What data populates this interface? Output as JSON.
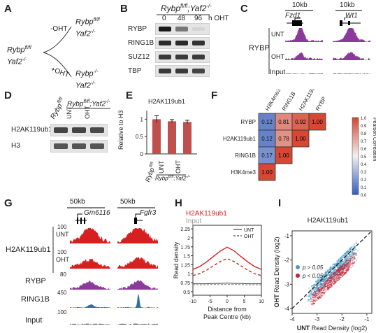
{
  "panels": [
    "A",
    "B",
    "C",
    "D",
    "E",
    "F",
    "G",
    "H",
    "I"
  ],
  "A": {
    "start_line1": "Rybp",
    "start_sup1": "fl/fl",
    "start_line2": "Yaf2",
    "start_sup2": "-/-",
    "minus_ohT": "-OHT",
    "plus_ohT": "+OHT",
    "top_line1": "Rybp",
    "top_sup1": "fl/fl",
    "top_line2": "Yaf2",
    "top_sup2": "-/-",
    "bot_line1": "Rybp",
    "bot_sup1": "-/-",
    "bot_line2": "Yaf2",
    "bot_sup2": "-/-"
  },
  "B": {
    "genotype": "Rybp",
    "genotype_sup1": "fl/fl",
    "genotype_mid": ";Yaf2",
    "genotype_sup2": "-/-",
    "timepoints": [
      "0",
      "48",
      "96"
    ],
    "time_unit": "h OHT",
    "rows": [
      "RYBP",
      "RING1B",
      "SUZ12",
      "TBP"
    ]
  },
  "C": {
    "scale1": "10kb",
    "scale2": "10kb",
    "gene1": "Fzd1",
    "gene2": "Wt1",
    "group": "RYBP",
    "track_untreated": "UNT",
    "track_treated": "OHT",
    "track_input": "Input"
  },
  "D": {
    "col1": "Rybp",
    "col1_sup": "fl/fl",
    "group_label": "Rybp",
    "group_sup1": "fl/fl",
    "group_mid": ";Yaf2",
    "group_sup2": "-/-",
    "col2": "UNT",
    "col3": "OHT",
    "rows": [
      "H2AK119ub1",
      "H3"
    ]
  },
  "E": {
    "title": "H2AK119ub1",
    "ylabel": "Relative to H3",
    "yticks": [
      "0",
      "0.5",
      "1"
    ],
    "bars": [
      {
        "label": "Rybp",
        "sup": "fl/fl"
      },
      {
        "label": "UNT"
      },
      {
        "label": "OHT"
      }
    ],
    "group_label": "Rybp",
    "group_sup1": "fl/fl",
    "group_mid": ";Yaf2",
    "group_sup2": "-/-"
  },
  "F": {
    "labels": [
      "RYBP",
      "H2AK119ub1",
      "RING1B",
      "H3K4me3"
    ],
    "col_labels": [
      "H3K4me3",
      "RING1B",
      "H2AK119ub1",
      "RYBP"
    ],
    "matrix": [
      [
        "0.12",
        "0.81",
        "0.92",
        "1.00"
      ],
      [
        "0.12",
        "0.78",
        "1.00"
      ],
      [
        "0.17",
        "1.00"
      ],
      [
        "1.00"
      ]
    ],
    "colorbar_title": "Pearson Correlation",
    "colorbar_ticks": [
      "1.0",
      "0.9",
      "0.8",
      "0.7",
      "0.6",
      "0.5",
      "0.4",
      "0.3",
      "0.2",
      "0.1",
      "0.0"
    ]
  },
  "G": {
    "scale1": "50kb",
    "scale2": "50kb",
    "gene1": "Gm6116",
    "gene2": "Fgfr3",
    "group": "H2AK119ub1",
    "tracks": [
      {
        "label": "UNT",
        "ymax": "100",
        "color": "#d62020"
      },
      {
        "label": "OHT",
        "ymax": "100",
        "color": "#d62020"
      },
      {
        "label": "RYBP",
        "ymax": "80",
        "color": "#8b3a9c"
      },
      {
        "label": "RING1B",
        "ymax": "450",
        "color": "#2b6fa8"
      },
      {
        "label": "Input",
        "ymax": "100",
        "color": "#555555"
      }
    ]
  },
  "H": {
    "legend_main": "H2AK119ub1",
    "legend_input": "Input",
    "legend_unt": "UNT",
    "legend_oht": "OHT",
    "ylabel": "Read density",
    "xlabel": "Distance from",
    "xlabel2": "Peak Centre (kb)",
    "yticks": [
      "0.5",
      "0.75",
      "1",
      "1.25",
      "1.5",
      "1.75",
      "2",
      "2.25"
    ],
    "xticks": [
      "-10",
      "-5",
      "0",
      "5",
      "10"
    ]
  },
  "I": {
    "title": "H2AK119ub1",
    "ylabel_bold": "OHT",
    "ylabel_rest": " Read Density (log2)",
    "xlabel_bold": "UNT",
    "xlabel_rest": " Read Density (log2)",
    "yticks": [
      "-1",
      "-2",
      "-3",
      "-4"
    ],
    "xticks": [
      "-4",
      "-3",
      "-2",
      "-1"
    ],
    "legend": [
      {
        "label": "p > 0.05",
        "color": "#4a9ac4"
      },
      {
        "label": "p < 0.05",
        "color": "#c0243a"
      }
    ]
  },
  "chart_data": [
    {
      "type": "bar",
      "title": "H2AK119ub1",
      "ylabel": "Relative to H3",
      "categories": [
        "Rybp fl/fl",
        "UNT",
        "OHT"
      ],
      "values": [
        1.0,
        0.94,
        0.92
      ],
      "errors": [
        0.1,
        0.05,
        0.05
      ],
      "ylim": [
        0,
        1.25
      ]
    },
    {
      "type": "heatmap",
      "title": "",
      "rows": [
        "RYBP",
        "H2AK119ub1",
        "RING1B",
        "H3K4me3"
      ],
      "columns": [
        "H3K4me3",
        "RING1B",
        "H2AK119ub1",
        "RYBP"
      ],
      "values": [
        [
          0.12,
          0.81,
          0.92,
          1.0
        ],
        [
          0.12,
          0.78,
          1.0
        ],
        [
          0.17,
          1.0
        ],
        [
          1.0
        ]
      ],
      "colorbar": "Pearson Correlation",
      "range": [
        0.0,
        1.0
      ]
    },
    {
      "type": "line",
      "xlabel": "Distance from Peak Centre (kb)",
      "ylabel": "Read density",
      "x": [
        -10,
        -8,
        -6,
        -4,
        -2,
        0,
        2,
        4,
        6,
        8,
        10
      ],
      "ylim": [
        0.4,
        2.35
      ],
      "series": [
        {
          "name": "H2AK119ub1 UNT",
          "values": [
            1.12,
            1.2,
            1.33,
            1.48,
            1.63,
            1.74,
            1.64,
            1.48,
            1.33,
            1.2,
            1.12
          ]
        },
        {
          "name": "H2AK119ub1 OHT",
          "values": [
            0.95,
            1.0,
            1.1,
            1.22,
            1.34,
            1.42,
            1.34,
            1.22,
            1.1,
            1.0,
            0.95
          ]
        },
        {
          "name": "Input UNT",
          "values": [
            0.72,
            0.72,
            0.72,
            0.73,
            0.73,
            0.74,
            0.73,
            0.73,
            0.72,
            0.72,
            0.72
          ]
        },
        {
          "name": "Input OHT",
          "values": [
            0.69,
            0.69,
            0.69,
            0.7,
            0.7,
            0.7,
            0.7,
            0.7,
            0.69,
            0.69,
            0.69
          ]
        }
      ]
    },
    {
      "type": "scatter",
      "title": "H2AK119ub1",
      "xlabel": "UNT Read Density (log2)",
      "ylabel": "OHT Read Density (log2)",
      "xlim": [
        -4,
        -0.8
      ],
      "ylim": [
        -4.2,
        -0.8
      ],
      "series": [
        {
          "name": "p > 0.05",
          "description": "centred on the diagonal"
        },
        {
          "name": "p < 0.05",
          "description": "below the diagonal"
        }
      ]
    }
  ],
  "colors": {
    "purple_track": "#8b3a9c",
    "red_track": "#d62020",
    "blue_track": "#2b6fa8",
    "bar": "#c0504d"
  }
}
